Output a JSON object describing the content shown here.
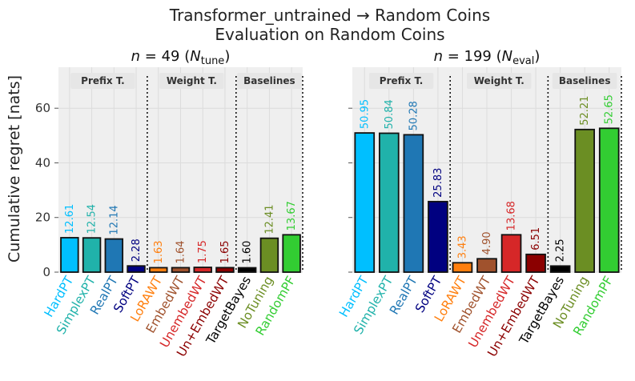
{
  "title": {
    "line1": "Transformer_untrained → Random Coins",
    "line2": "Evaluation on Random Coins"
  },
  "ylabel": "Cumulative regret [nats]",
  "yticks": [
    "0",
    "20",
    "40",
    "60"
  ],
  "groups": [
    "Prefix T.",
    "Weight T.",
    "Baselines"
  ],
  "colors": {
    "HardPT": "#00bfff",
    "SimplexPT": "#20b2aa",
    "RealPT": "#1f77b4",
    "SoftPT": "#000080",
    "LoRAWT": "#ff7f0e",
    "EmbedWT": "#a0522d",
    "UnembedWT": "#d62728",
    "Un+EmbedWT": "#8b0000",
    "TargetBayes": "#000000",
    "NoTuning": "#6b8e23",
    "RandomPF": "#32cd32"
  },
  "chart_data": [
    {
      "type": "bar",
      "title_main": "n = 49",
      "title_sub": "tune",
      "categories": [
        "HardPT",
        "SimplexPT",
        "RealPT",
        "SoftPT",
        "LoRAWT",
        "EmbedWT",
        "UnembedWT",
        "Un+EmbedWT",
        "TargetBayes",
        "NoTuning",
        "RandomPF"
      ],
      "values": [
        12.61,
        12.54,
        12.14,
        2.28,
        1.63,
        1.64,
        1.75,
        1.65,
        1.6,
        12.41,
        13.67
      ],
      "labels": [
        "12.61",
        "12.54",
        "12.14",
        "2.28",
        "1.63",
        "1.64",
        "1.75",
        "1.65",
        "1.60",
        "12.41",
        "13.67"
      ],
      "ylim": [
        0,
        75
      ],
      "ylabel": "Cumulative regret [nats]",
      "grid": true
    },
    {
      "type": "bar",
      "title_main": "n = 199",
      "title_sub": "eval",
      "categories": [
        "HardPT",
        "SimplexPT",
        "RealPT",
        "SoftPT",
        "LoRAWT",
        "EmbedWT",
        "UnembedWT",
        "Un+EmbedWT",
        "TargetBayes",
        "NoTuning",
        "RandomPF"
      ],
      "values": [
        50.95,
        50.84,
        50.28,
        25.83,
        3.43,
        4.9,
        13.68,
        6.51,
        2.25,
        52.21,
        52.65
      ],
      "labels": [
        "50.95",
        "50.84",
        "50.28",
        "25.83",
        "3.43",
        "4.90",
        "13.68",
        "6.51",
        "2.25",
        "52.21",
        "52.65"
      ],
      "ylim": [
        0,
        75
      ],
      "grid": true
    }
  ]
}
